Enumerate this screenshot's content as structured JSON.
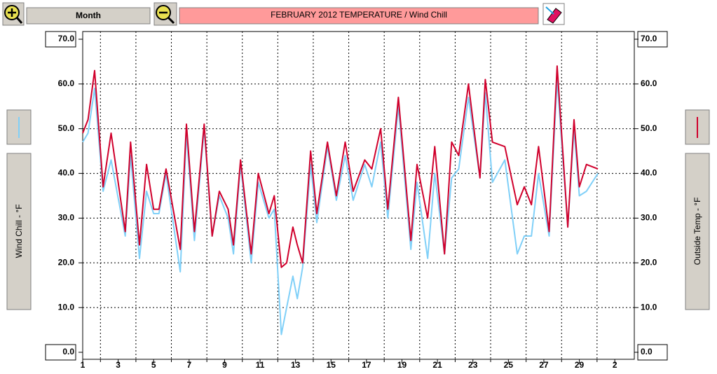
{
  "toolbar": {
    "period": "Month"
  },
  "chart_data": {
    "type": "line",
    "title": "FEBRUARY  2012   TEMPERATURE / Wind Chill",
    "y_label": "Wind Chill - °F",
    "y2_label": "Outside Temp - °F",
    "x": [
      1.0,
      1.3,
      1.67,
      2.15,
      2.6,
      3.4,
      3.7,
      4.2,
      4.6,
      5.0,
      5.3,
      5.7,
      6.5,
      6.85,
      7.3,
      7.85,
      8.3,
      8.7,
      9.2,
      9.5,
      9.9,
      10.5,
      10.9,
      11.5,
      11.8,
      12.2,
      12.5,
      12.85,
      13.1,
      13.4,
      13.85,
      14.2,
      14.8,
      15.3,
      15.8,
      16.25,
      16.9,
      17.3,
      17.8,
      18.2,
      18.8,
      19.5,
      19.85,
      20.45,
      20.85,
      21.4,
      21.8,
      22.2,
      22.75,
      23.4,
      23.7,
      24.1,
      24.8,
      25.5,
      25.9,
      26.3,
      26.7,
      27.3,
      27.75,
      28.35,
      28.7,
      29.0,
      29.4,
      30.05
    ],
    "series": [
      {
        "name": "Wind Chill",
        "color": "#80d0f8",
        "axis": "y",
        "values": [
          47,
          49,
          59,
          36,
          43,
          26,
          44,
          21,
          36,
          31,
          31,
          40,
          18,
          49,
          25,
          50,
          26,
          35,
          30,
          22,
          42,
          20,
          38,
          30,
          32,
          4,
          10,
          17,
          12,
          19,
          42,
          29,
          46,
          34,
          44,
          34,
          42,
          37,
          47,
          30,
          55,
          23,
          38,
          21,
          40,
          22,
          39,
          41,
          57,
          39,
          58,
          38,
          43,
          22,
          26,
          26,
          40,
          26,
          61,
          28,
          50,
          35,
          36,
          40
        ]
      },
      {
        "name": "Outside Temp",
        "color": "#d0002c",
        "axis": "y2",
        "values": [
          49,
          52,
          63,
          37,
          49,
          27,
          47,
          24,
          42,
          32,
          32,
          41,
          23,
          51,
          27,
          51,
          26,
          36,
          32,
          24,
          43,
          22,
          40,
          31,
          35,
          19,
          20,
          28,
          24,
          20,
          45,
          31,
          47,
          35,
          47,
          36,
          43,
          41,
          50,
          32,
          57,
          25,
          42,
          30,
          46,
          22,
          47,
          44,
          60,
          39,
          61,
          47,
          46,
          33,
          37,
          33,
          46,
          27,
          64,
          28,
          52,
          37,
          42,
          41
        ]
      }
    ],
    "xlim": [
      1,
      32.1
    ],
    "xticks": [
      1,
      3,
      5,
      7,
      9,
      11,
      13,
      15,
      17,
      19,
      21,
      23,
      25,
      27,
      29,
      {
        "value": 31,
        "label": "2"
      }
    ],
    "ylim": [
      0,
      70
    ],
    "yticks": [
      {
        "value": 0,
        "label": "0.0"
      },
      {
        "value": 10,
        "label": "10.0"
      },
      {
        "value": 20,
        "label": "20.0"
      },
      {
        "value": 30,
        "label": "30.0"
      },
      {
        "value": 40,
        "label": "40.0"
      },
      {
        "value": 50,
        "label": "50.0"
      },
      {
        "value": 60,
        "label": "60.0"
      },
      {
        "value": 70,
        "label": "70.0"
      }
    ],
    "y2lim": [
      0,
      70
    ],
    "y2ticks": [
      {
        "value": 0,
        "label": "0.0"
      },
      {
        "value": 10,
        "label": "10.0"
      },
      {
        "value": 20,
        "label": "20.0"
      },
      {
        "value": 30,
        "label": "30.0"
      },
      {
        "value": 40,
        "label": "40.0"
      },
      {
        "value": 50,
        "label": "50.0"
      },
      {
        "value": 60,
        "label": "60.0"
      },
      {
        "value": 70,
        "label": "70.0"
      }
    ],
    "grid": true
  }
}
